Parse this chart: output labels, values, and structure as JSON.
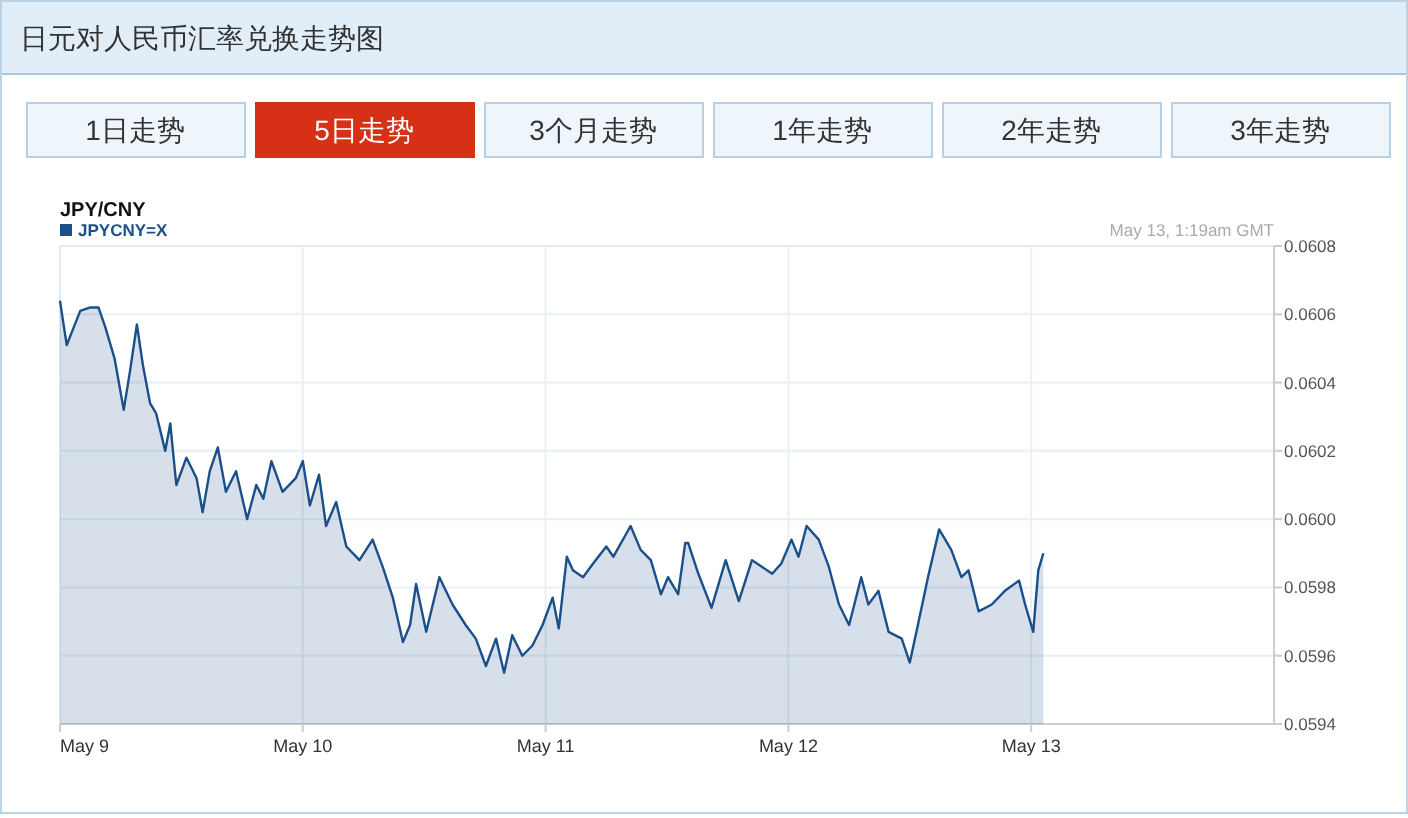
{
  "chart_data": {
    "type": "area",
    "title": "日元对人民币汇率兑换走势图",
    "subtitle": "JPY/CNY",
    "annotations": [
      "1日走势",
      "5日走势",
      "3个月走势",
      "1年走势",
      "2年走势",
      "3年走势",
      "May 13, 1:19am GMT"
    ],
    "xlim": [
      "--05-09T00:00",
      "--05-14T00:00"
    ],
    "xticks": [
      {
        "value": "--05-09T00:00",
        "label": "May 9"
      },
      {
        "value": "--05-10T00:00",
        "label": "May 10"
      },
      {
        "value": "--05-11T00:00",
        "label": "May 11"
      },
      {
        "value": "--05-12T00:00",
        "label": "May 12"
      },
      {
        "value": "--05-13T00:00",
        "label": "May 13"
      }
    ],
    "ylim": [
      0.0594,
      0.0608
    ],
    "yticks": [
      {
        "value": 0.0594,
        "label": "0.0594"
      },
      {
        "value": 0.0596,
        "label": "0.0596"
      },
      {
        "value": 0.0598,
        "label": "0.0598"
      },
      {
        "value": 0.06,
        "label": "0.0600"
      },
      {
        "value": 0.0602,
        "label": "0.0602"
      },
      {
        "value": 0.0604,
        "label": "0.0604"
      },
      {
        "value": 0.0606,
        "label": "0.0606"
      },
      {
        "value": 0.0608,
        "label": "0.0608"
      }
    ],
    "grid": true,
    "legend": "top left",
    "series": [
      {
        "name": "JPYCNY=X",
        "color": "#1a4f8a",
        "x": [
          "--05-09T00:00",
          "--05-09T00:18",
          "--05-09T00:40",
          "--05-09T01:12",
          "--05-09T02:00",
          "--05-09T03:00",
          "--05-09T03:48",
          "--05-09T04:30",
          "--05-09T05:24",
          "--05-09T06:18",
          "--05-09T06:54",
          "--05-09T07:36",
          "--05-09T08:12",
          "--05-09T08:54",
          "--05-09T09:30",
          "--05-09T10:24",
          "--05-09T10:54",
          "--05-09T11:30",
          "--05-09T12:30",
          "--05-09T13:30",
          "--05-09T14:06",
          "--05-09T14:48",
          "--05-09T15:36",
          "--05-09T16:24",
          "--05-09T17:24",
          "--05-09T18:30",
          "--05-09T19:24",
          "--05-09T20:06",
          "--05-09T20:54",
          "--05-09T22:00",
          "--05-09T23:18",
          "--05-10T00:00",
          "--05-10T00:42",
          "--05-10T01:36",
          "--05-10T02:18",
          "--05-10T03:18",
          "--05-10T04:18",
          "--05-10T05:36",
          "--05-10T06:54",
          "--05-10T07:54",
          "--05-10T08:54",
          "--05-10T09:54",
          "--05-10T10:36",
          "--05-10T11:12",
          "--05-10T12:12",
          "--05-10T13:30",
          "--05-10T14:48",
          "--05-10T16:06",
          "--05-10T17:06",
          "--05-10T18:06",
          "--05-10T19:06",
          "--05-10T19:54",
          "--05-10T20:42",
          "--05-10T21:42",
          "--05-10T22:42",
          "--05-10T23:42",
          "--05-11T00:42",
          "--05-11T01:18",
          "--05-11T02:06",
          "--05-11T02:42",
          "--05-11T03:42",
          "--05-11T04:42",
          "--05-11T06:00",
          "--05-11T06:42",
          "--05-11T08:24",
          "--05-11T09:24",
          "--05-11T10:24",
          "--05-11T11:24",
          "--05-11T12:06",
          "--05-11T13:06",
          "--05-11T13:48",
          "--05-11T14:06",
          "--05-11T15:06",
          "--05-11T16:24",
          "--05-11T17:48",
          "--05-11T19:06",
          "--05-11T20:24",
          "--05-11T22:24",
          "--05-11T23:18",
          "--05-12T00:18",
          "--05-12T01:00",
          "--05-12T01:48",
          "--05-12T03:00",
          "--05-12T04:00",
          "--05-12T05:00",
          "--05-12T06:00",
          "--05-12T07:12",
          "--05-12T07:54",
          "--05-12T08:54",
          "--05-12T09:54",
          "--05-12T11:12",
          "--05-12T12:00",
          "--05-12T12:48",
          "--05-12T13:48",
          "--05-12T14:54",
          "--05-12T16:06",
          "--05-12T17:06",
          "--05-12T17:48",
          "--05-12T18:48",
          "--05-12T20:06",
          "--05-12T21:24",
          "--05-12T22:48",
          "--05-12T23:24",
          "--05-13T00:12",
          "--05-13T00:42",
          "--05-13T01:12"
        ],
        "values": [
          0.06064,
          0.06058,
          0.06051,
          0.06055,
          0.06061,
          0.06062,
          0.06062,
          0.06056,
          0.06047,
          0.06032,
          0.06043,
          0.06057,
          0.06045,
          0.06034,
          0.06031,
          0.0602,
          0.06028,
          0.0601,
          0.06018,
          0.06012,
          0.06002,
          0.06014,
          0.06021,
          0.06008,
          0.06014,
          0.06,
          0.0601,
          0.06006,
          0.06017,
          0.06008,
          0.06012,
          0.06017,
          0.06004,
          0.06013,
          0.05998,
          0.06005,
          0.05992,
          0.05988,
          0.05994,
          0.05986,
          0.05977,
          0.05964,
          0.05969,
          0.05981,
          0.05967,
          0.05983,
          0.05975,
          0.05969,
          0.05965,
          0.05957,
          0.05965,
          0.05955,
          0.05966,
          0.0596,
          0.05963,
          0.05969,
          0.05977,
          0.05968,
          0.05989,
          0.05985,
          0.05983,
          0.05987,
          0.05992,
          0.05989,
          0.05998,
          0.05991,
          0.05988,
          0.05978,
          0.05983,
          0.05978,
          0.05993,
          0.05993,
          0.05984,
          0.05974,
          0.05988,
          0.05976,
          0.05988,
          0.05984,
          0.05987,
          0.05994,
          0.05989,
          0.05998,
          0.05994,
          0.05986,
          0.05975,
          0.05969,
          0.05983,
          0.05975,
          0.05979,
          0.05967,
          0.05965,
          0.05958,
          0.05969,
          0.05983,
          0.05997,
          0.05991,
          0.05983,
          0.05985,
          0.05973,
          0.05975,
          0.05979,
          0.05982,
          0.05975,
          0.05967,
          0.05985,
          0.0599
        ]
      }
    ]
  }
}
